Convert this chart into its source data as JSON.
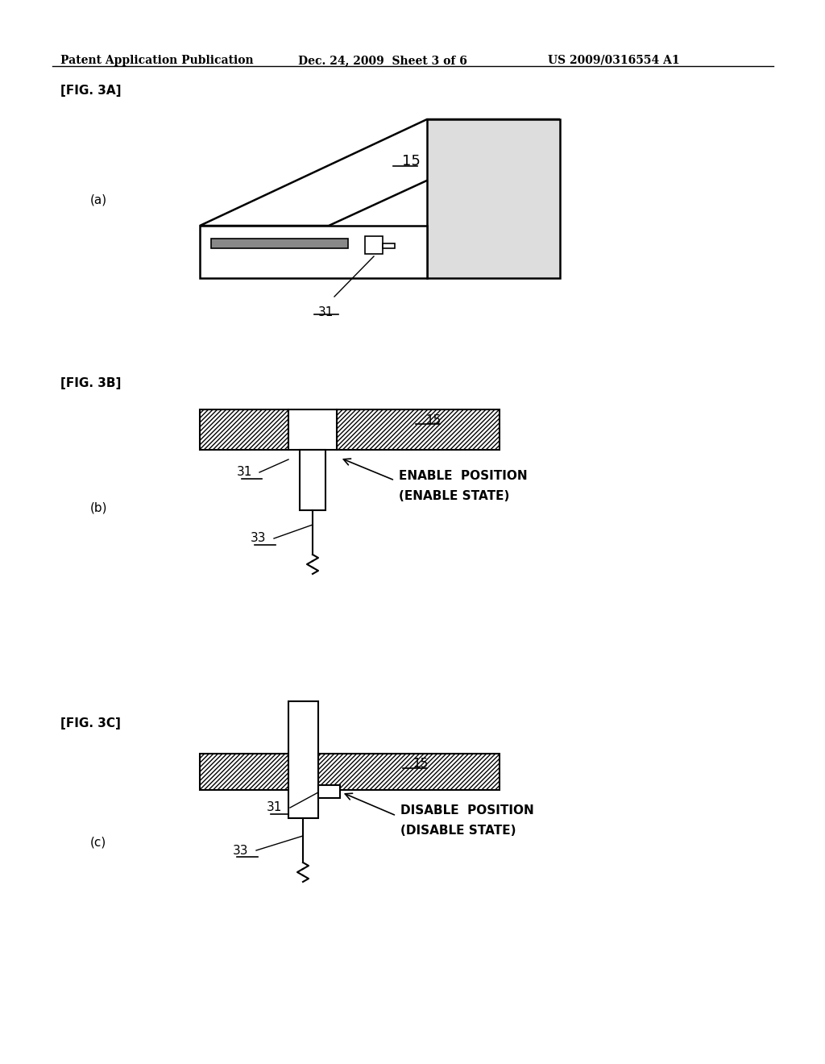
{
  "bg_color": "#ffffff",
  "header_text": "Patent Application Publication",
  "header_date": "Dec. 24, 2009  Sheet 3 of 6",
  "header_patent": "US 2009/0316554 A1",
  "fig3a_label": "[FIG. 3A]",
  "fig3b_label": "[FIG. 3B]",
  "fig3c_label": "[FIG. 3C]",
  "sub_a": "(a)",
  "sub_b": "(b)",
  "sub_c": "(c)",
  "label_15": "15",
  "label_31": "31",
  "label_33": "33",
  "enable_text1": "ENABLE  POSITION",
  "enable_text2": "(ENABLE STATE)",
  "disable_text1": "DISABLE  POSITION",
  "disable_text2": "(DISABLE STATE)"
}
